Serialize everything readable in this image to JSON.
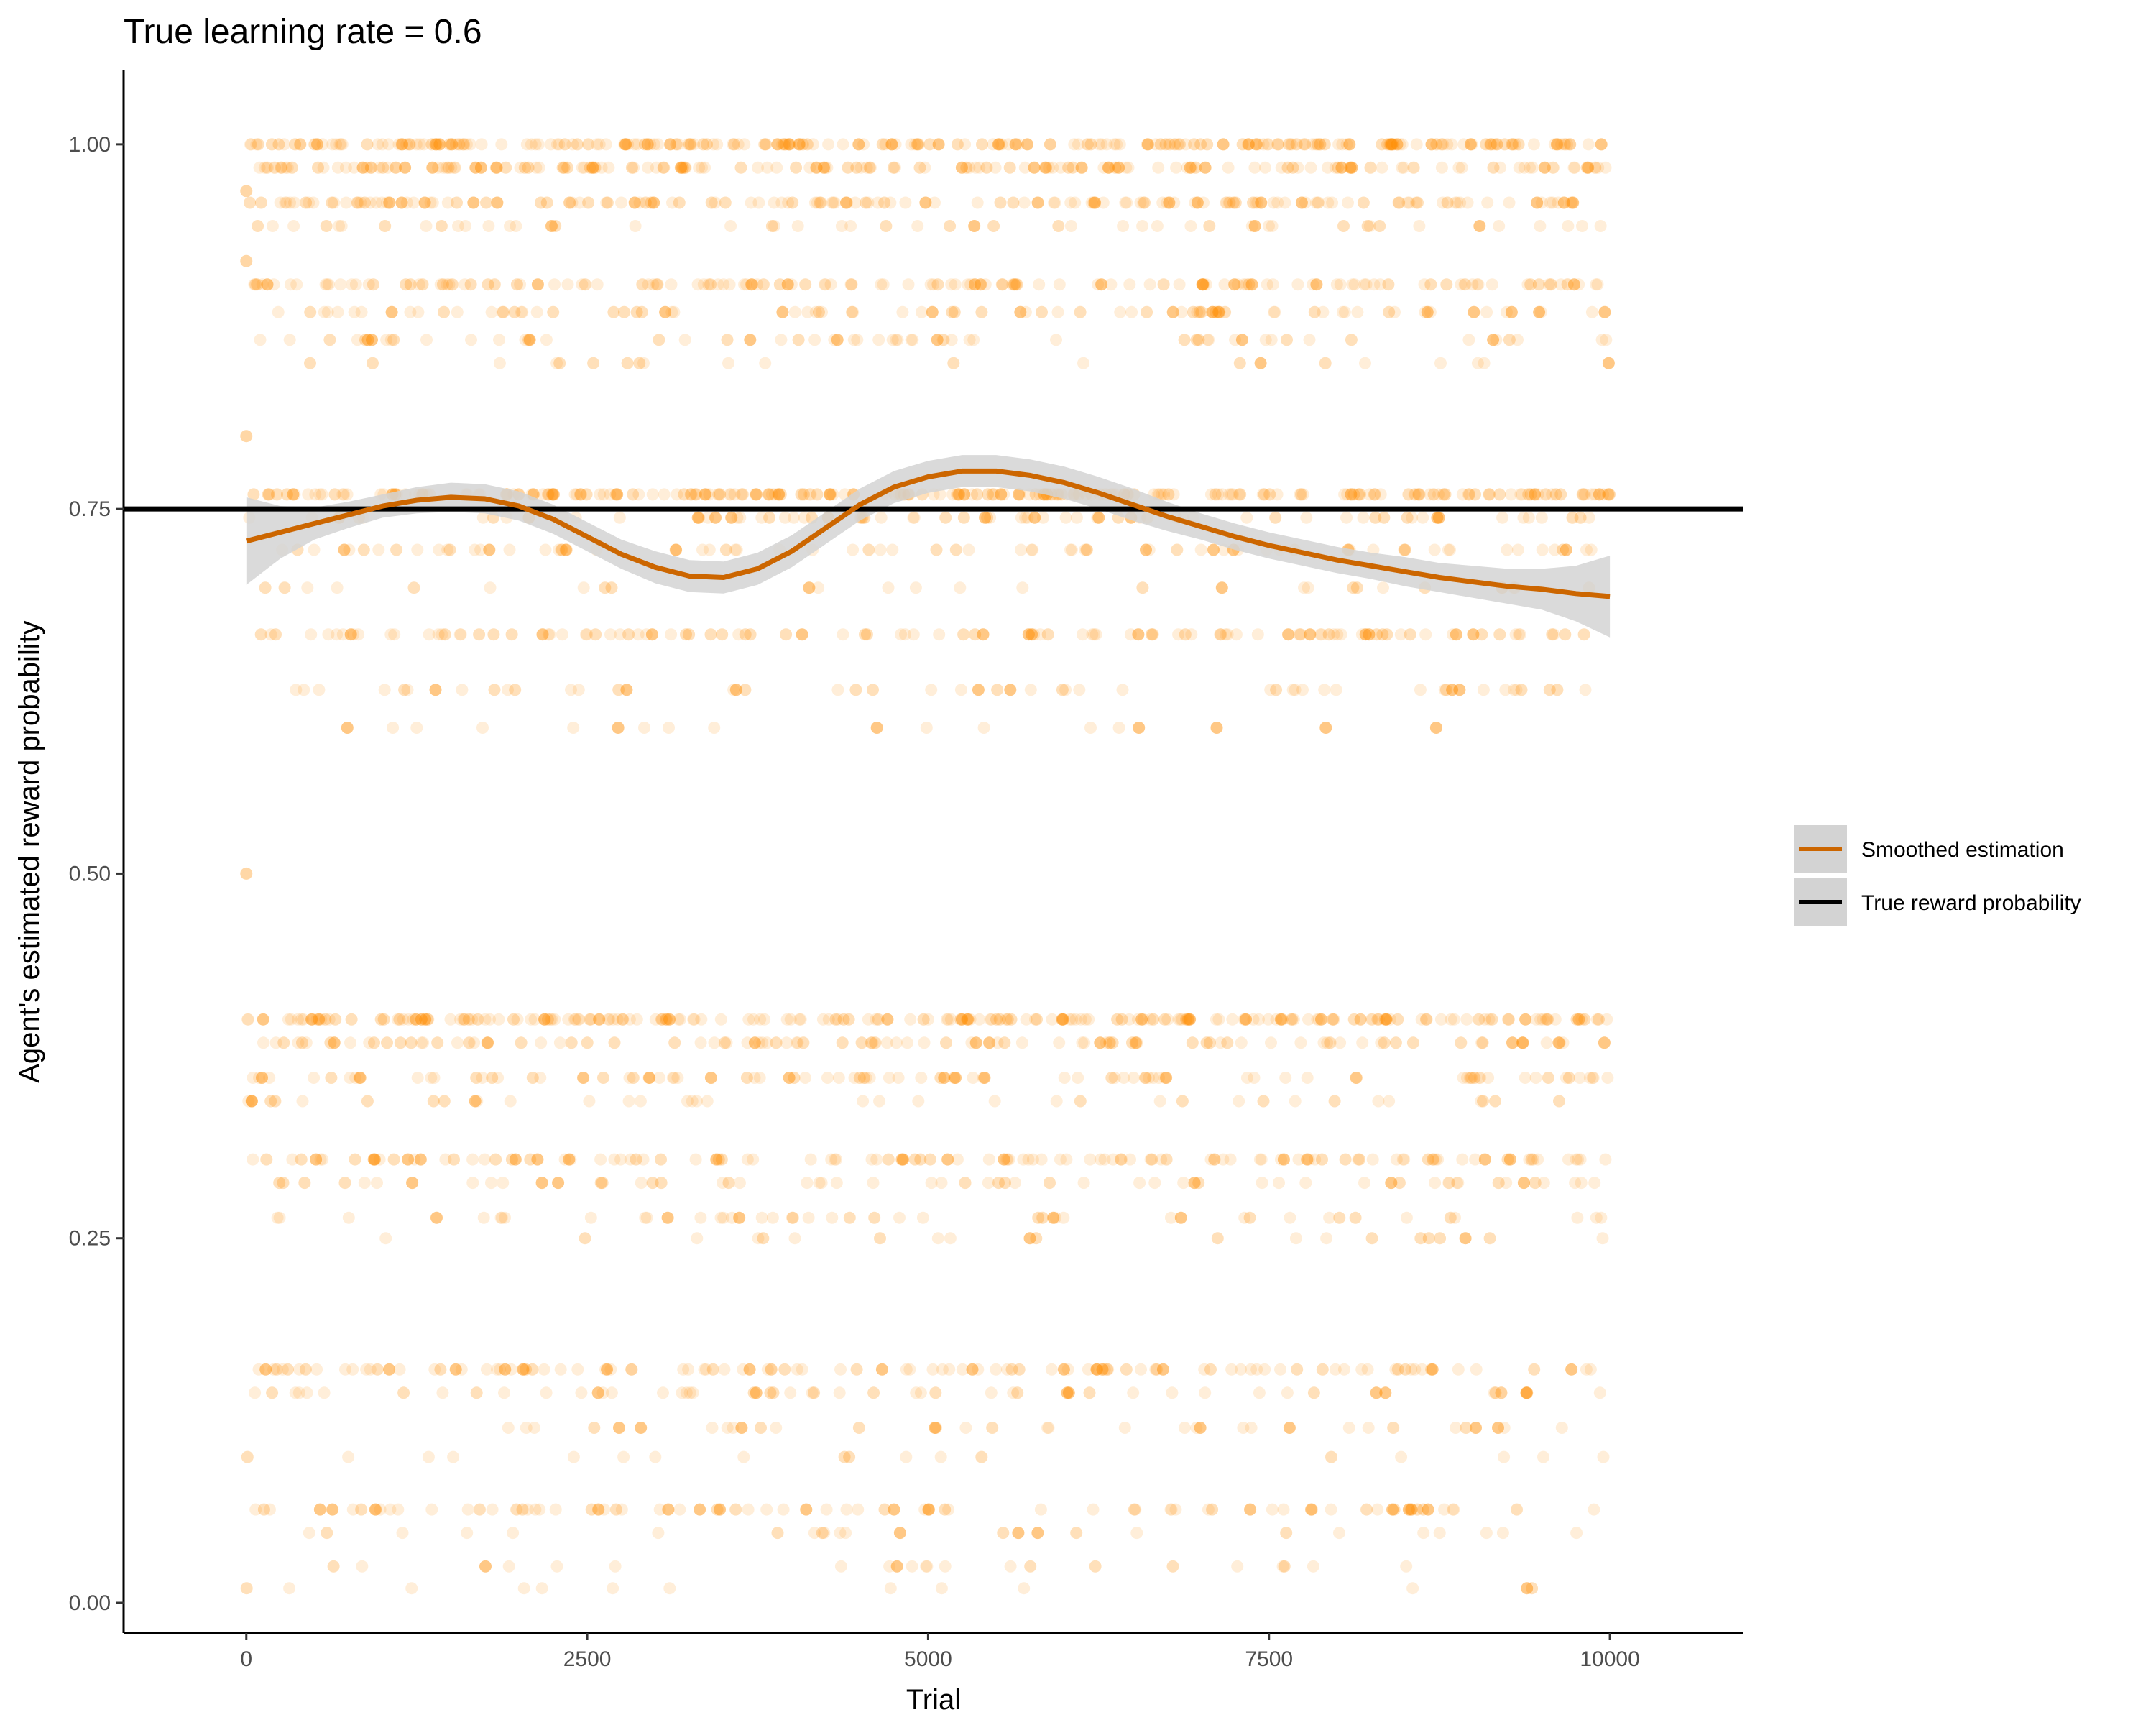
{
  "chart_data": {
    "type": "scatter",
    "title": "True learning rate = 0.6",
    "xlabel": "Trial",
    "ylabel": "Agent's estimated reward probability",
    "xlim": [
      -900,
      10980
    ],
    "ylim": [
      -0.0207,
      1.0507
    ],
    "x_ticks": [
      0,
      2500,
      5000,
      7500,
      10000
    ],
    "x_tick_labels": [
      "0",
      "2500",
      "5000",
      "7500",
      "10000"
    ],
    "y_ticks": [
      0,
      0.25,
      0.5,
      0.75,
      1.0
    ],
    "y_tick_labels": [
      "0.00",
      "0.25",
      "0.50",
      "0.75",
      "1.00"
    ],
    "grid": false,
    "legend_position": "right",
    "colors": {
      "points": "#ff8c00",
      "smooth": "#cc6600",
      "ribbon": "#d3d3d3",
      "true_line": "#000000",
      "axis": "#000000",
      "tick_label": "#4d4d4d"
    },
    "point_alpha": 0.15,
    "point_levels": [
      1.0,
      0.984,
      0.96,
      0.944,
      0.904,
      0.885,
      0.866,
      0.85,
      0.76,
      0.744,
      0.722,
      0.696,
      0.664,
      0.626,
      0.6,
      0.4,
      0.384,
      0.36,
      0.344,
      0.304,
      0.288,
      0.264,
      0.25,
      0.16,
      0.144,
      0.12,
      0.1,
      0.064,
      0.048,
      0.025,
      0.01
    ],
    "point_level_weights": [
      24,
      16,
      16,
      6,
      16,
      8,
      7,
      3,
      22,
      8,
      8,
      3,
      10,
      6,
      2,
      22,
      10,
      10,
      5,
      12,
      6,
      5,
      3,
      12,
      6,
      4,
      2,
      7,
      3,
      3,
      1
    ],
    "points_count": 2500,
    "initial_points": [
      {
        "x": 0,
        "y": 0.5
      },
      {
        "x": 0,
        "y": 0.8
      },
      {
        "x": 0,
        "y": 0.92
      },
      {
        "x": 0,
        "y": 0.968
      }
    ],
    "series": [
      {
        "name": "Smoothed estimation",
        "type": "line",
        "x": [
          0,
          250,
          500,
          750,
          1000,
          1250,
          1500,
          1750,
          2000,
          2250,
          2500,
          2750,
          3000,
          3250,
          3500,
          3750,
          4000,
          4250,
          4500,
          4750,
          5000,
          5250,
          5500,
          5750,
          6000,
          6250,
          6500,
          6750,
          7000,
          7250,
          7500,
          7750,
          8000,
          8250,
          8500,
          8750,
          9000,
          9250,
          9500,
          9750,
          10000
        ],
        "y": [
          0.728,
          0.734,
          0.74,
          0.746,
          0.752,
          0.756,
          0.758,
          0.757,
          0.752,
          0.743,
          0.731,
          0.719,
          0.71,
          0.704,
          0.703,
          0.709,
          0.721,
          0.737,
          0.753,
          0.765,
          0.772,
          0.776,
          0.776,
          0.773,
          0.768,
          0.761,
          0.753,
          0.745,
          0.738,
          0.731,
          0.725,
          0.72,
          0.715,
          0.711,
          0.707,
          0.703,
          0.7,
          0.697,
          0.695,
          0.692,
          0.69
        ],
        "ci_low": [
          0.698,
          0.716,
          0.729,
          0.737,
          0.744,
          0.747,
          0.748,
          0.747,
          0.742,
          0.733,
          0.721,
          0.709,
          0.699,
          0.693,
          0.692,
          0.698,
          0.71,
          0.726,
          0.742,
          0.754,
          0.761,
          0.765,
          0.765,
          0.762,
          0.757,
          0.75,
          0.742,
          0.735,
          0.729,
          0.722,
          0.716,
          0.711,
          0.706,
          0.702,
          0.697,
          0.693,
          0.689,
          0.685,
          0.681,
          0.673,
          0.662
        ],
        "ci_high": [
          0.758,
          0.752,
          0.751,
          0.755,
          0.76,
          0.765,
          0.768,
          0.767,
          0.762,
          0.753,
          0.741,
          0.729,
          0.721,
          0.715,
          0.714,
          0.72,
          0.732,
          0.748,
          0.764,
          0.776,
          0.783,
          0.787,
          0.787,
          0.784,
          0.779,
          0.772,
          0.764,
          0.755,
          0.747,
          0.74,
          0.734,
          0.729,
          0.724,
          0.72,
          0.717,
          0.713,
          0.711,
          0.709,
          0.709,
          0.711,
          0.718
        ]
      },
      {
        "name": "True reward probability",
        "type": "hline",
        "y": 0.75
      }
    ],
    "legend": [
      {
        "label": "Smoothed estimation",
        "key": "smooth"
      },
      {
        "label": "True reward probability",
        "key": "true"
      }
    ]
  }
}
